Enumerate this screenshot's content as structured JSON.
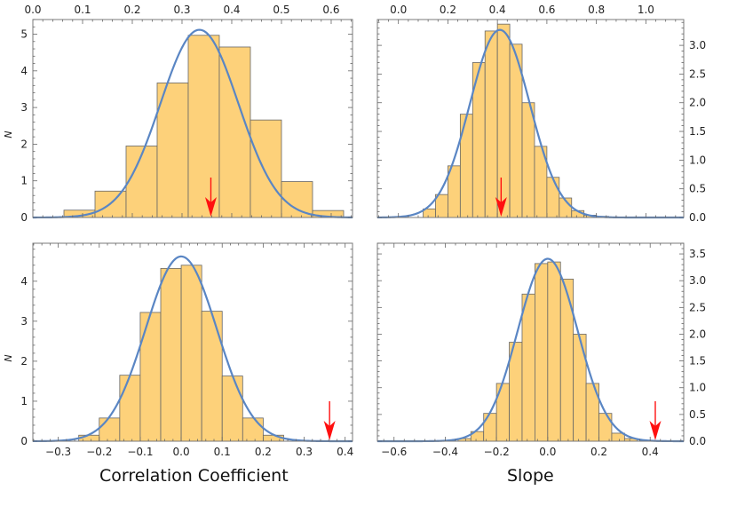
{
  "figure": {
    "xlabel_left": "Correlation Coefficient",
    "xlabel_right": "Slope"
  },
  "colors": {
    "bar_fill": "#FDD17A",
    "bar_stroke": "#666666",
    "curve": "#5A86C4",
    "arrow": "#FF1010",
    "frame": "#7a7a7a"
  },
  "chart_data": [
    {
      "id": "top-left",
      "type": "bar",
      "xlim": [
        0.0,
        0.6429
      ],
      "ylim": [
        0,
        5.4
      ],
      "x_ticks": [
        "0.0",
        "0.1",
        "0.2",
        "0.3",
        "0.4",
        "0.5",
        "0.6"
      ],
      "x_tick_values": [
        0.0,
        0.1,
        0.2,
        0.3,
        0.4,
        0.5,
        0.6
      ],
      "x_ticks_position": "top",
      "y_ticks": [
        "0",
        "1",
        "2",
        "3",
        "4",
        "5"
      ],
      "y_tick_values": [
        0,
        1,
        2,
        3,
        4,
        5
      ],
      "y_ticks_position": "left",
      "ylabel": "N",
      "bin_edges": [
        0.0,
        0.0625,
        0.125,
        0.1875,
        0.25,
        0.3125,
        0.375,
        0.4375,
        0.5,
        0.5625,
        0.625
      ],
      "values": [
        0.0,
        0.2,
        0.72,
        1.95,
        3.67,
        4.97,
        4.65,
        2.66,
        0.98,
        0.19
      ],
      "curve": {
        "mu": 0.335,
        "sigma": 0.0785,
        "peak": 5.12
      },
      "arrow_x": 0.358
    },
    {
      "id": "top-right",
      "type": "bar",
      "xlim": [
        -0.085,
        1.153
      ],
      "ylim": [
        0,
        3.45
      ],
      "x_ticks": [
        "0.0",
        "0.2",
        "0.4",
        "0.6",
        "0.8",
        "1.0"
      ],
      "x_tick_values": [
        0.0,
        0.2,
        0.4,
        0.6,
        0.8,
        1.0
      ],
      "x_ticks_position": "top",
      "y_ticks": [
        "0.0",
        "0.5",
        "1.0",
        "1.5",
        "2.0",
        "2.5",
        "3.0"
      ],
      "y_tick_values": [
        0,
        0.5,
        1.0,
        1.5,
        2.0,
        2.5,
        3.0
      ],
      "y_ticks_position": "right",
      "ylabel": "",
      "bin_edges": [
        0.1,
        0.15,
        0.2,
        0.25,
        0.3,
        0.35,
        0.4,
        0.45,
        0.5,
        0.55,
        0.6,
        0.65,
        0.7,
        0.75,
        0.8,
        0.85
      ],
      "values": [
        0.15,
        0.4,
        0.9,
        1.8,
        2.7,
        3.25,
        3.37,
        3.02,
        2.0,
        1.24,
        0.7,
        0.34,
        0.12,
        0.04,
        0.02
      ],
      "curve": {
        "mu": 0.41,
        "sigma": 0.121,
        "peak": 3.27
      },
      "arrow_x": 0.415
    },
    {
      "id": "bottom-left",
      "type": "bar",
      "xlim": [
        -0.362,
        0.418
      ],
      "ylim": [
        0,
        4.95
      ],
      "x_ticks": [
        "−0.3",
        "−0.2",
        "−0.1",
        "0.0",
        "0.1",
        "0.2",
        "0.3",
        "0.4"
      ],
      "x_tick_values": [
        -0.3,
        -0.2,
        -0.1,
        0.0,
        0.1,
        0.2,
        0.3,
        0.4
      ],
      "x_ticks_position": "bottom",
      "y_ticks": [
        "0",
        "1",
        "2",
        "3",
        "4"
      ],
      "y_tick_values": [
        0,
        1,
        2,
        3,
        4
      ],
      "y_ticks_position": "left",
      "ylabel": "N",
      "bin_edges": [
        -0.25,
        -0.2,
        -0.15,
        -0.1,
        -0.05,
        0.0,
        0.05,
        0.1,
        0.15,
        0.2,
        0.25
      ],
      "values": [
        0.15,
        0.58,
        1.65,
        3.22,
        4.32,
        4.4,
        3.25,
        1.63,
        0.58,
        0.15
      ],
      "curve": {
        "mu": 0.0,
        "sigma": 0.087,
        "peak": 4.62
      },
      "arrow_x": 0.362
    },
    {
      "id": "bottom-right",
      "type": "bar",
      "xlim": [
        -0.665,
        0.531
      ],
      "ylim": [
        0,
        3.7
      ],
      "x_ticks": [
        "−0.6",
        "−0.4",
        "−0.2",
        "0.0",
        "0.2",
        "0.4"
      ],
      "x_tick_values": [
        -0.6,
        -0.4,
        -0.2,
        0.0,
        0.2,
        0.4
      ],
      "x_ticks_position": "bottom",
      "y_ticks": [
        "0.0",
        "0.5",
        "1.0",
        "1.5",
        "2.0",
        "2.5",
        "3.0",
        "3.5"
      ],
      "y_tick_values": [
        0,
        0.5,
        1.0,
        1.5,
        2.0,
        2.5,
        3.0,
        3.5
      ],
      "y_ticks_position": "right",
      "ylabel": "",
      "bin_edges": [
        -0.35,
        -0.3,
        -0.25,
        -0.2,
        -0.15,
        -0.1,
        -0.05,
        0.0,
        0.05,
        0.1,
        0.15,
        0.2,
        0.25,
        0.3,
        0.35
      ],
      "values": [
        0.05,
        0.18,
        0.52,
        1.08,
        1.85,
        2.75,
        3.32,
        3.35,
        3.03,
        2.0,
        1.08,
        0.52,
        0.15,
        0.05
      ],
      "curve": {
        "mu": 0.0,
        "sigma": 0.117,
        "peak": 3.41
      },
      "arrow_x": 0.42
    }
  ]
}
